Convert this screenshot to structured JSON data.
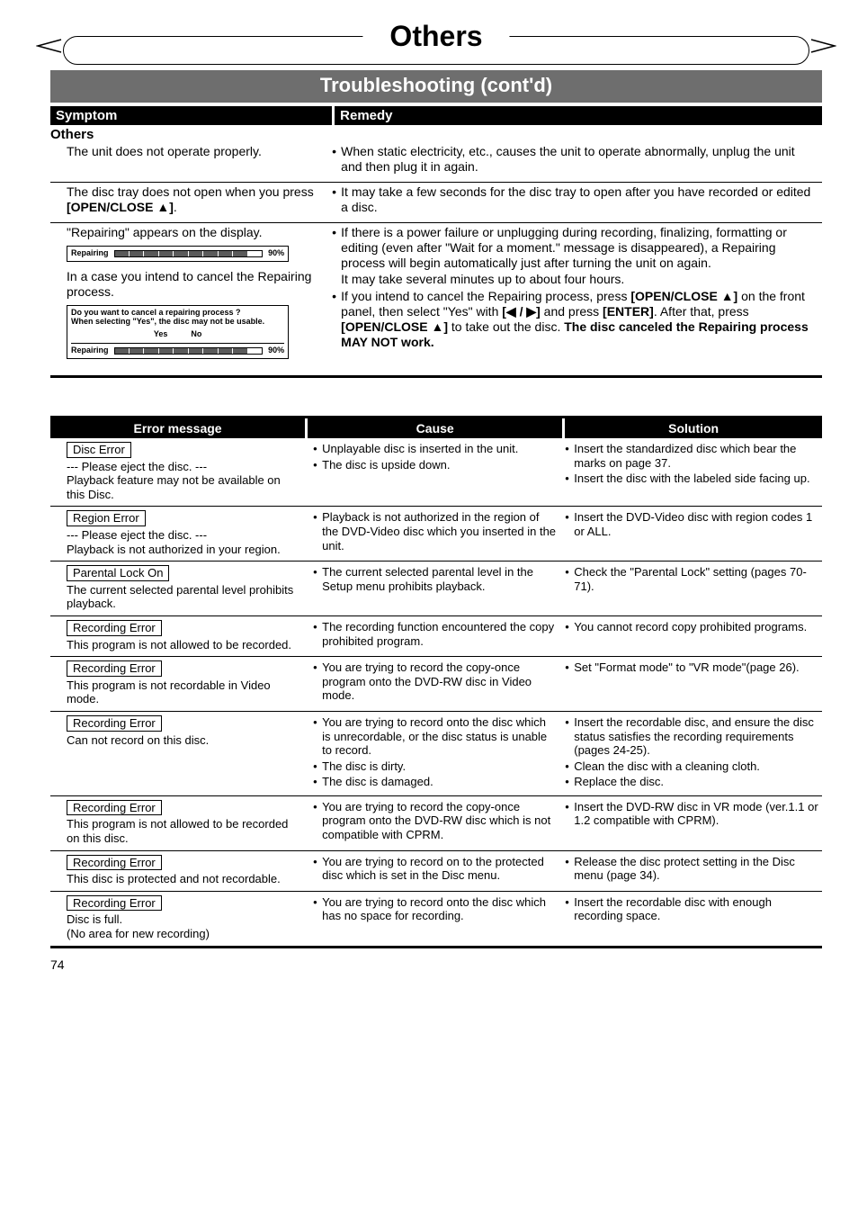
{
  "page_number": "74",
  "title": "Others",
  "banner": "Troubleshooting (cont'd)",
  "sym_header": "Symptom",
  "rem_header": "Remedy",
  "others_label": "Others",
  "trouble_rows": [
    {
      "symptom_plain": "The unit does not operate properly.",
      "remedy": [
        "When static electricity, etc., causes the unit to operate abnormally, unplug the unit and then plug it in again."
      ]
    },
    {
      "symptom_html": "The disc tray does not open when you press <b>[OPEN/CLOSE ▲]</b>.",
      "remedy": [
        "It may take a few seconds for the disc tray to open after you have recorded or edited a disc."
      ]
    }
  ],
  "repairing_symptom_top": "\"Repairing\" appears on the display.",
  "repairing_box1": {
    "label": "Repairing",
    "pct": "90%"
  },
  "repairing_mid_text": "In a case you intend to cancel the Repairing process.",
  "repairing_box2": {
    "line1": "Do you want to cancel a repairing process ?",
    "line2": "When selecting \"Yes\", the disc may not be usable.",
    "yes": "Yes",
    "no": "No",
    "label": "Repairing",
    "pct": "90%"
  },
  "repairing_remedy": [
    "If there is a power failure or unplugging during recording, finalizing, formatting or editing (even after \"Wait for a moment.\" message is disappeared), a Repairing process will begin automatically just after turning the unit on again.<br>It may take several minutes up to about four hours.",
    "If you intend to cancel the Repairing process, press <b>[OPEN/CLOSE ▲]</b> on the front panel, then select \"Yes\" with <b>[◀ / ▶]</b> and press <b>[ENTER]</b>. After that, press <b>[OPEN/CLOSE ▲]</b> to take out the disc. <b>The disc canceled the Repairing process MAY NOT work.</b>"
  ],
  "err_head_msg": "Error message",
  "err_head_cause": "Cause",
  "err_head_sol": "Solution",
  "error_rows": [
    {
      "tag": "Disc Error",
      "msg_after": "--- Please eject the disc. ---<br>Playback feature may not be available on this Disc.",
      "cause": [
        "Unplayable disc is inserted in the unit.",
        "The disc is upside down."
      ],
      "sol": [
        "Insert the standardized disc which bear the marks on page 37.",
        "Insert the disc with the labeled side facing up."
      ]
    },
    {
      "tag": "Region Error",
      "msg_after": "--- Please eject the disc. ---<br>Playback is not authorized in your region.",
      "cause": [
        "Playback is not authorized in the region of the DVD-Video disc which you inserted in the unit."
      ],
      "sol": [
        "Insert the DVD-Video disc with region codes 1 or ALL."
      ]
    },
    {
      "tag": "Parental Lock On",
      "msg_after": "The current selected parental level prohibits playback.",
      "cause": [
        "The current selected parental level in the Setup menu prohibits playback."
      ],
      "sol": [
        "Check the \"Parental Lock\" setting (pages 70-71)."
      ]
    },
    {
      "tag": "Recording Error",
      "msg_after": "This program is not allowed to be recorded.",
      "cause": [
        "The recording function encountered the copy prohibited program."
      ],
      "sol": [
        "You cannot record copy prohibited programs."
      ]
    },
    {
      "tag": "Recording Error",
      "msg_after": "This program is not recordable in Video mode.",
      "cause": [
        "You are trying to record the copy-once program onto the DVD-RW disc in Video mode."
      ],
      "sol": [
        "Set \"Format mode\" to \"VR mode\"(page 26)."
      ]
    },
    {
      "tag": "Recording Error",
      "msg_after": "Can not record on this disc.",
      "cause": [
        "You are trying to record onto the disc which is unrecordable, or the disc status is unable to record.",
        "The disc is dirty.",
        "The disc is damaged."
      ],
      "sol": [
        "Insert the recordable disc, and ensure the disc status satisfies the recording requirements (pages 24-25).",
        "Clean the disc with a cleaning cloth.",
        "Replace the disc."
      ]
    },
    {
      "tag": "Recording Error",
      "msg_after": "This program is not allowed to be recorded on this disc.",
      "cause": [
        "You are trying to record the copy-once program onto the DVD-RW disc which is not compatible with CPRM."
      ],
      "sol": [
        "Insert the DVD-RW disc in VR mode (ver.1.1 or 1.2 compatible with CPRM)."
      ]
    },
    {
      "tag": "Recording Error",
      "msg_after": "This disc is protected and not recordable.",
      "cause": [
        "You are trying to record on to the protected disc which is set in the Disc menu."
      ],
      "sol": [
        "Release the disc protect setting in the Disc menu (page 34)."
      ]
    },
    {
      "tag": "Recording Error",
      "msg_after": "Disc is full.<br>(No area for new recording)",
      "cause": [
        "You are trying to record onto the disc which has no space for recording."
      ],
      "sol": [
        "Insert the recordable disc with enough recording space."
      ]
    }
  ]
}
